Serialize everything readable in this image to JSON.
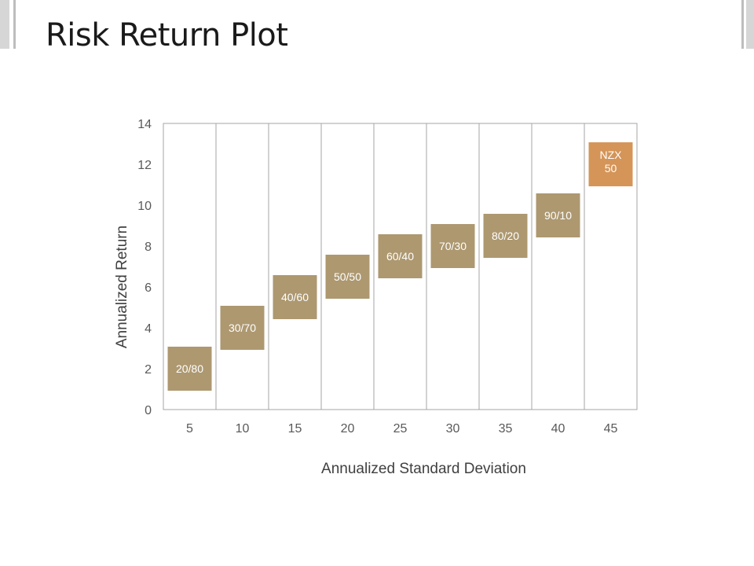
{
  "slide": {
    "title": "Risk Return Plot"
  },
  "chart_data": {
    "type": "scatter",
    "title": "",
    "xlabel": "Annualized Standard Deviation",
    "ylabel": "Annualized Return",
    "xlim": [
      2.5,
      47.5
    ],
    "ylim": [
      0,
      14
    ],
    "x_ticks": [
      5,
      10,
      15,
      20,
      25,
      30,
      35,
      40,
      45
    ],
    "y_ticks": [
      0,
      2,
      4,
      6,
      8,
      10,
      12,
      14
    ],
    "grid": "vertical",
    "legend": "none",
    "points": [
      {
        "label": "20/80",
        "x": 5,
        "y": 2,
        "color": "#ad9870"
      },
      {
        "label": "30/70",
        "x": 10,
        "y": 4,
        "color": "#ad9870"
      },
      {
        "label": "40/60",
        "x": 15,
        "y": 5.5,
        "color": "#ad9870"
      },
      {
        "label": "50/50",
        "x": 20,
        "y": 6.5,
        "color": "#ad9870"
      },
      {
        "label": "60/40",
        "x": 25,
        "y": 7.5,
        "color": "#ad9870"
      },
      {
        "label": "70/30",
        "x": 30,
        "y": 8,
        "color": "#ad9870"
      },
      {
        "label": "80/20",
        "x": 35,
        "y": 8.5,
        "color": "#ad9870"
      },
      {
        "label": "90/10",
        "x": 40,
        "y": 9.5,
        "color": "#ad9870"
      },
      {
        "label": "NZX 50",
        "x": 45,
        "y": 12,
        "color": "#d59558"
      }
    ]
  }
}
